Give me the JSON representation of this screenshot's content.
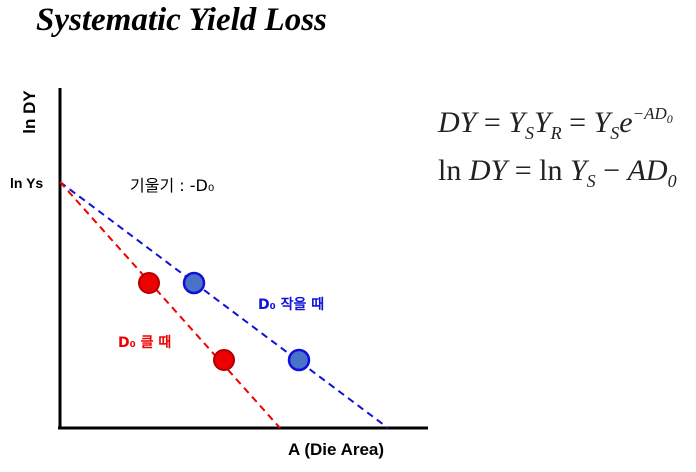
{
  "title": "Systematic Yield Loss",
  "axes": {
    "y_label": "ln DY",
    "x_label": "A (Die Area)",
    "y_intercept_label": "ln Ys"
  },
  "annotations": {
    "slope": "기울기 : -D₀",
    "small_d0": "D₀ 작을 때",
    "large_d0": "D₀ 클 때"
  },
  "colors": {
    "small_d0": "#1010d8",
    "small_d0_marker": "#4a72c8",
    "large_d0": "#ee0000",
    "axis": "#000000"
  },
  "lines": [
    {
      "name": "D₀ 작을 때",
      "style": "dashed",
      "color": "#1010d8"
    },
    {
      "name": "D₀ 클 때",
      "style": "dashed",
      "color": "#ee0000"
    }
  ],
  "equations": {
    "line1": "DY = Y_S Y_R = Y_S e^{-AD_0}",
    "line2": "ln DY = ln Y_S − AD_0"
  }
}
